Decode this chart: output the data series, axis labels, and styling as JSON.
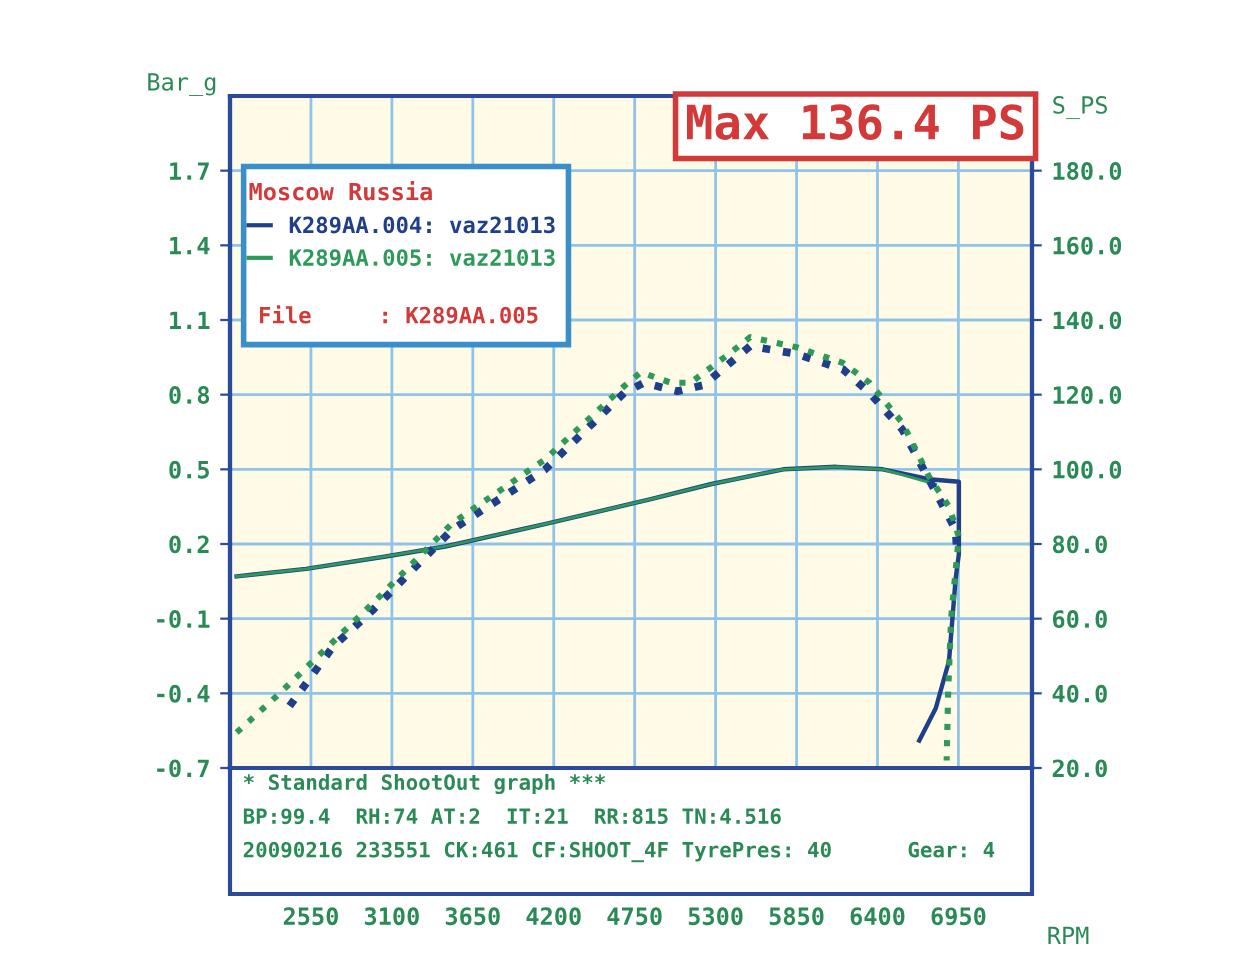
{
  "chart_data": {
    "type": "line",
    "xlabel": "RPM",
    "ylabel": "Bar_g",
    "y2label": "S_PS",
    "legend_title": "Moscow Russia",
    "annotations": [
      "Max 136.4 PS",
      "File     : K289AA.005",
      "* Standard ShootOut graph ***",
      "BP:99.4  RH:74 AT:2  IT:21  RR:815 TN:4.516",
      "20090216 233551 CK:461 CF:SHOOT_4F TyrePres: 40      Gear: 4"
    ],
    "xlim": [
      2000,
      7450
    ],
    "xticks": [
      2550,
      3100,
      3650,
      4200,
      4750,
      5300,
      5850,
      6400,
      6950
    ],
    "ylim": [
      -0.7,
      2.0
    ],
    "yticks": [
      -0.7,
      -0.4,
      -0.1,
      0.2,
      0.5,
      0.8,
      1.1,
      1.4,
      1.7
    ],
    "y2lim": [
      20,
      200
    ],
    "y2ticks": [
      {
        "value": 20,
        "label": "20.0"
      },
      {
        "value": 40,
        "label": "40.0"
      },
      {
        "value": 60,
        "label": "60.0"
      },
      {
        "value": 80,
        "label": "80.0"
      },
      {
        "value": 100,
        "label": "100.0"
      },
      {
        "value": 120,
        "label": "120.0"
      },
      {
        "value": 140,
        "label": "140.0"
      },
      {
        "value": 160,
        "label": "160.0"
      },
      {
        "value": 180,
        "label": "180.0"
      }
    ],
    "grid": true,
    "legend": "top left",
    "marker": "none",
    "series": [
      {
        "name": "K289AA.004: vaz21013",
        "color": "#1f3f8a",
        "axis": "y2",
        "line_style": "dotted",
        "x": [
          2405,
          2698,
          2968,
          3509,
          4139,
          4679,
          4814,
          5040,
          5220,
          5535,
          5850,
          6165,
          6346,
          6570,
          6751,
          6931,
          6940
        ],
        "values": [
          36.6,
          52.4,
          62.2,
          83.8,
          99.9,
          120.5,
          123.2,
          120.9,
          122.6,
          133,
          130.9,
          126.8,
          120.5,
          110.6,
          97.2,
          83.8,
          78
        ]
      },
      {
        "name": "K289AA.005: vaz21013",
        "color": "#2e9a5a",
        "axis": "y2",
        "line_style": "dotted",
        "x": [
          2045,
          2338,
          2968,
          3509,
          4139,
          4679,
          4792,
          4995,
          5130,
          5400,
          5535,
          5850,
          6165,
          6346,
          6570,
          6751,
          6886,
          6953,
          6900,
          6880,
          6870
        ],
        "values": [
          29.5,
          40,
          64,
          85.5,
          102.6,
          122.3,
          126,
          123.2,
          123.2,
          131.2,
          135.4,
          132.7,
          128.5,
          123.2,
          112.4,
          98,
          90,
          82,
          60,
          40,
          22
        ]
      },
      {
        "color": "#1f3f8a",
        "axis": "y",
        "line_style": "solid",
        "x": [
          2045,
          2517,
          3058,
          3463,
          4139,
          4860,
          5265,
          5760,
          6120,
          6436,
          6751,
          6953,
          6953,
          6931,
          6886,
          6796,
          6684
        ],
        "values": [
          0.07,
          0.1,
          0.15,
          0.19,
          0.28,
          0.38,
          0.44,
          0.5,
          0.51,
          0.5,
          0.46,
          0.45,
          0.16,
          0.06,
          -0.27,
          -0.46,
          -0.59
        ]
      },
      {
        "color": "#2e9a5a",
        "axis": "y",
        "line_style": "solid",
        "x": [
          2045,
          2517,
          3058,
          3463,
          4139,
          4860,
          5265,
          5760,
          6120,
          6436,
          6796
        ],
        "values": [
          0.07,
          0.1,
          0.15,
          0.19,
          0.28,
          0.38,
          0.44,
          0.5,
          0.51,
          0.5,
          0.44
        ]
      }
    ]
  }
}
